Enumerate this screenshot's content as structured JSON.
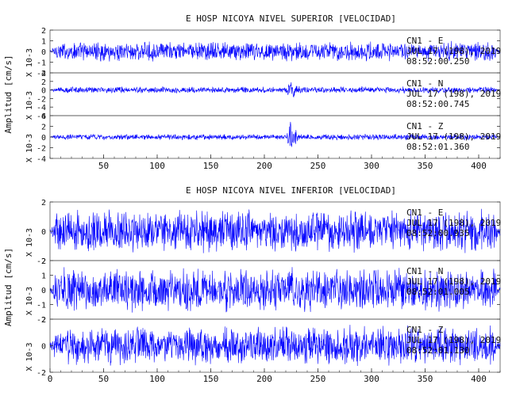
{
  "chart_data": [
    {
      "type": "line",
      "title": "E HOSP NICOYA NIVEL SUPERIOR [VELOCIDAD]",
      "ylabel": "Amplitud [cm/s]",
      "xlim": [
        0,
        420
      ],
      "x_ticks": [
        50,
        100,
        150,
        200,
        250,
        300,
        350,
        400
      ],
      "series_color": "#0000ff",
      "traces": [
        {
          "name": "CN1 - E",
          "date": "JUL 17 (198), 2019",
          "time": "08:52:00.250",
          "scale": "X 10-3",
          "ylim": [
            -2,
            2
          ],
          "y_ticks": [
            -2,
            -1,
            0,
            1,
            2
          ],
          "noise_amplitude": 1.0,
          "event": null
        },
        {
          "name": "CN1 - N",
          "date": "JUL 17 (198), 2019",
          "time": "08:52:00.745",
          "scale": "X 10-3",
          "ylim": [
            -6,
            4
          ],
          "y_ticks": [
            -6,
            -4,
            -2,
            0,
            2,
            4
          ],
          "noise_amplitude": 0.8,
          "event": {
            "start": 220,
            "peak": 225,
            "end": 245,
            "peak_amplitude": 3.5
          }
        },
        {
          "name": "CN1 - Z",
          "date": "JUL 17 (198), 2019",
          "time": "08:52:01.360",
          "scale": "X 10-3",
          "ylim": [
            -4,
            4
          ],
          "y_ticks": [
            -4,
            -2,
            0,
            2,
            4
          ],
          "noise_amplitude": 0.6,
          "event": {
            "start": 220,
            "peak": 224,
            "end": 240,
            "peak_amplitude": 4.0
          }
        }
      ]
    },
    {
      "type": "line",
      "title": "E HOSP NICOYA NIVEL INFERIOR [VELOCIDAD]",
      "ylabel": "Amplitud [cm/s]",
      "xlim": [
        0,
        420
      ],
      "x_ticks": [
        0,
        50,
        100,
        150,
        200,
        250,
        300,
        350,
        400
      ],
      "series_color": "#0000ff",
      "traces": [
        {
          "name": "CN1 - E",
          "date": "JUL 17 (198), 2019",
          "time": "08:52:00.935",
          "scale": "X 10-3",
          "ylim": [
            -2,
            2
          ],
          "y_ticks": [
            -2,
            0,
            2
          ],
          "noise_amplitude": 1.6,
          "event": null
        },
        {
          "name": "CN1 - N",
          "date": "JUL 17 (198), 2019",
          "time": "08:52:01.005",
          "scale": "X 10-3",
          "ylim": [
            -2,
            2
          ],
          "y_ticks": [
            -2,
            -1,
            0,
            1,
            2
          ],
          "noise_amplitude": 1.6,
          "event": null
        },
        {
          "name": "CN1 - Z",
          "date": "JUL 17 (198), 2019",
          "time": "08:52:01.130",
          "scale": "X 10-3",
          "ylim": [
            -2,
            2
          ],
          "y_ticks": [
            -2,
            0,
            2
          ],
          "noise_amplitude": 1.6,
          "event": null
        }
      ]
    }
  ]
}
